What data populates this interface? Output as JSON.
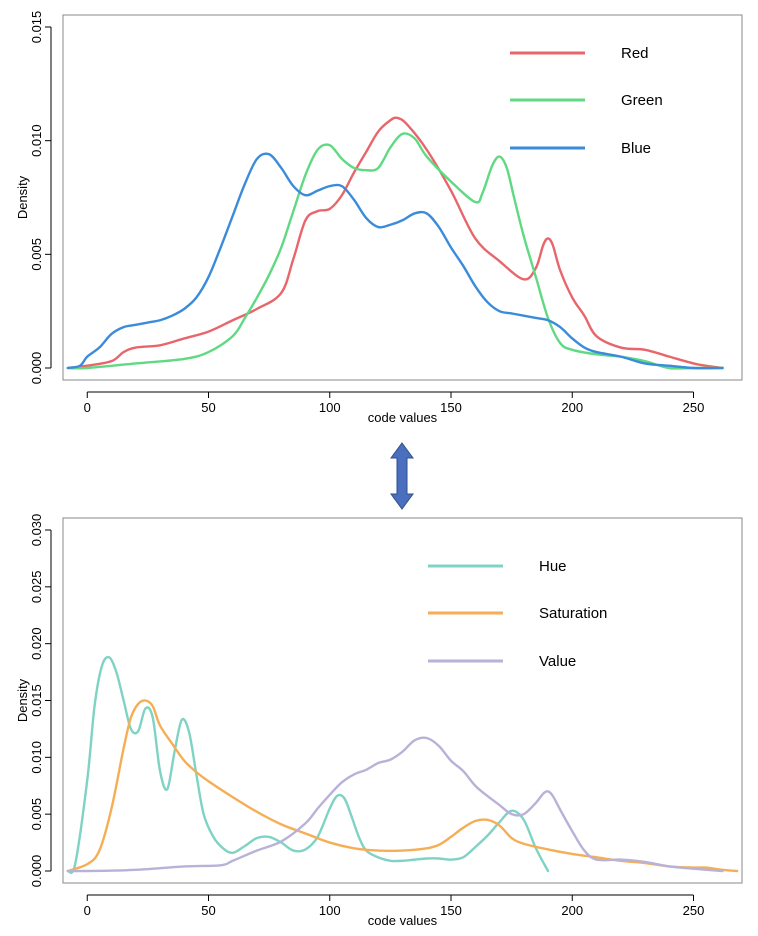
{
  "arrow_color": "#4a6fbf",
  "chart_data": [
    {
      "type": "line",
      "title": "",
      "xlabel": "code values",
      "ylabel": "Density",
      "xlim": [
        -10,
        270
      ],
      "ylim": [
        0,
        0.015
      ],
      "xticks": [
        {
          "v": 0,
          "label": "0"
        },
        {
          "v": 50,
          "label": "50"
        },
        {
          "v": 100,
          "label": "100"
        },
        {
          "v": 150,
          "label": "150"
        },
        {
          "v": 200,
          "label": "200"
        },
        {
          "v": 250,
          "label": "250"
        }
      ],
      "yticks": [
        {
          "v": 0,
          "label": "0.000"
        },
        {
          "v": 0.005,
          "label": "0.005"
        },
        {
          "v": 0.01,
          "label": "0.010"
        },
        {
          "v": 0.015,
          "label": "0.015"
        }
      ],
      "legend_position": "top-right",
      "series": [
        {
          "name": "Red",
          "color": "#e8666b",
          "x": [
            -8,
            0,
            10,
            15,
            20,
            30,
            40,
            50,
            60,
            70,
            80,
            85,
            90,
            95,
            100,
            105,
            110,
            115,
            120,
            125,
            128,
            132,
            140,
            150,
            160,
            170,
            180,
            185,
            188,
            190,
            192,
            195,
            200,
            205,
            210,
            220,
            230,
            240,
            250,
            255,
            262
          ],
          "y": [
            0,
            0.0001,
            0.0003,
            0.0007,
            0.0009,
            0.001,
            0.0013,
            0.0016,
            0.0021,
            0.0026,
            0.0033,
            0.0048,
            0.0065,
            0.0069,
            0.007,
            0.0076,
            0.0086,
            0.0095,
            0.0104,
            0.0109,
            0.011,
            0.0107,
            0.0096,
            0.0078,
            0.0057,
            0.0047,
            0.0039,
            0.0044,
            0.0054,
            0.0057,
            0.0054,
            0.0043,
            0.0031,
            0.0023,
            0.0014,
            0.0009,
            0.0008,
            0.0005,
            0.0002,
            0.0001,
            0
          ]
        },
        {
          "name": "Green",
          "color": "#5fd982",
          "x": [
            -8,
            0,
            20,
            40,
            50,
            60,
            65,
            70,
            75,
            80,
            85,
            90,
            95,
            100,
            105,
            110,
            115,
            120,
            125,
            130,
            135,
            140,
            150,
            160,
            163,
            167,
            170,
            173,
            176,
            180,
            185,
            190,
            195,
            200,
            210,
            220,
            230,
            240,
            250,
            262
          ],
          "y": [
            0,
            0,
            0.0002,
            0.0004,
            0.0007,
            0.0014,
            0.0022,
            0.0031,
            0.0041,
            0.0053,
            0.0069,
            0.0085,
            0.0096,
            0.0098,
            0.0092,
            0.0088,
            0.0087,
            0.0088,
            0.0097,
            0.0103,
            0.0101,
            0.0093,
            0.0082,
            0.0073,
            0.0077,
            0.0089,
            0.0093,
            0.0088,
            0.0075,
            0.0058,
            0.004,
            0.0022,
            0.0011,
            0.0008,
            0.0006,
            0.0005,
            0.0003,
            0,
            0,
            0
          ]
        },
        {
          "name": "Blue",
          "color": "#3b8bdb",
          "x": [
            -8,
            -3,
            0,
            5,
            10,
            15,
            20,
            25,
            30,
            35,
            40,
            45,
            50,
            55,
            60,
            65,
            70,
            75,
            80,
            85,
            90,
            95,
            100,
            105,
            110,
            115,
            120,
            125,
            130,
            135,
            140,
            145,
            150,
            155,
            160,
            165,
            170,
            175,
            180,
            185,
            190,
            195,
            200,
            205,
            210,
            220,
            230,
            240,
            250,
            262
          ],
          "y": [
            0,
            0.0001,
            0.0005,
            0.0009,
            0.0015,
            0.0018,
            0.0019,
            0.002,
            0.0021,
            0.0023,
            0.0026,
            0.0031,
            0.004,
            0.0053,
            0.0067,
            0.0081,
            0.0092,
            0.0094,
            0.0088,
            0.008,
            0.0076,
            0.0078,
            0.008,
            0.008,
            0.0074,
            0.0066,
            0.0062,
            0.0063,
            0.0065,
            0.0068,
            0.0068,
            0.0062,
            0.0053,
            0.0045,
            0.0036,
            0.0029,
            0.0025,
            0.0024,
            0.0023,
            0.0022,
            0.0021,
            0.0018,
            0.0013,
            0.0009,
            0.0007,
            0.0005,
            0.0002,
            0.0001,
            0,
            0
          ]
        }
      ]
    },
    {
      "type": "line",
      "title": "",
      "xlabel": "code values",
      "ylabel": "Density",
      "xlim": [
        -10,
        270
      ],
      "ylim": [
        0,
        0.03
      ],
      "xticks": [
        {
          "v": 0,
          "label": "0"
        },
        {
          "v": 50,
          "label": "50"
        },
        {
          "v": 100,
          "label": "100"
        },
        {
          "v": 150,
          "label": "150"
        },
        {
          "v": 200,
          "label": "200"
        },
        {
          "v": 250,
          "label": "250"
        }
      ],
      "yticks": [
        {
          "v": 0,
          "label": "0.000"
        },
        {
          "v": 0.005,
          "label": "0.005"
        },
        {
          "v": 0.01,
          "label": "0.010"
        },
        {
          "v": 0.015,
          "label": "0.015"
        },
        {
          "v": 0.02,
          "label": "0.020"
        },
        {
          "v": 0.025,
          "label": "0.025"
        },
        {
          "v": 0.03,
          "label": "0.030"
        }
      ],
      "legend_position": "top-right",
      "series": [
        {
          "name": "Hue",
          "color": "#7fd3c4",
          "x": [
            -8,
            -5,
            0,
            3,
            6,
            9,
            12,
            15,
            18,
            21,
            24,
            27,
            30,
            33,
            36,
            39,
            42,
            45,
            48,
            52,
            56,
            60,
            65,
            70,
            75,
            80,
            85,
            90,
            95,
            100,
            103,
            106,
            109,
            112,
            115,
            120,
            125,
            130,
            135,
            140,
            145,
            150,
            155,
            160,
            165,
            170,
            175,
            180,
            185,
            190
          ],
          "y": [
            0,
            0.0006,
            0.008,
            0.0145,
            0.018,
            0.0188,
            0.0175,
            0.015,
            0.0125,
            0.0123,
            0.0143,
            0.0135,
            0.0088,
            0.0072,
            0.0105,
            0.0133,
            0.0122,
            0.0085,
            0.005,
            0.003,
            0.002,
            0.0016,
            0.0022,
            0.0029,
            0.003,
            0.0025,
            0.0018,
            0.0019,
            0.003,
            0.0055,
            0.0066,
            0.0064,
            0.0048,
            0.003,
            0.0018,
            0.0012,
            0.0009,
            0.0009,
            0.001,
            0.0011,
            0.0011,
            0.001,
            0.0012,
            0.0021,
            0.0031,
            0.0043,
            0.0053,
            0.0045,
            0.002,
            0
          ]
        },
        {
          "name": "Saturation",
          "color": "#f6ae55",
          "x": [
            -8,
            0,
            5,
            10,
            15,
            18,
            21,
            24,
            27,
            30,
            35,
            40,
            45,
            50,
            60,
            70,
            80,
            90,
            100,
            110,
            120,
            130,
            140,
            145,
            150,
            155,
            160,
            165,
            170,
            175,
            180,
            190,
            200,
            210,
            220,
            230,
            240,
            250,
            255,
            262,
            268
          ],
          "y": [
            0,
            0.0006,
            0.0018,
            0.0055,
            0.0108,
            0.0135,
            0.0147,
            0.015,
            0.0145,
            0.0128,
            0.0112,
            0.0097,
            0.0087,
            0.0079,
            0.0065,
            0.0052,
            0.0041,
            0.0033,
            0.0025,
            0.002,
            0.0018,
            0.0018,
            0.002,
            0.0023,
            0.003,
            0.0038,
            0.0044,
            0.0045,
            0.004,
            0.0029,
            0.0024,
            0.0019,
            0.0015,
            0.0012,
            0.0009,
            0.0007,
            0.0004,
            0.0003,
            0.0003,
            0.0001,
            0
          ]
        },
        {
          "name": "Value",
          "color": "#b8b2d8",
          "x": [
            -8,
            0,
            20,
            40,
            55,
            60,
            70,
            80,
            90,
            95,
            100,
            105,
            110,
            115,
            120,
            125,
            130,
            135,
            140,
            145,
            150,
            155,
            160,
            165,
            170,
            175,
            180,
            185,
            188,
            190,
            192,
            195,
            200,
            205,
            210,
            220,
            230,
            240,
            250,
            262
          ],
          "y": [
            0,
            0,
            0.0001,
            0.0004,
            0.0005,
            0.0009,
            0.0018,
            0.0026,
            0.0042,
            0.0055,
            0.0067,
            0.0078,
            0.0085,
            0.0089,
            0.0095,
            0.0098,
            0.0105,
            0.0115,
            0.0117,
            0.011,
            0.0097,
            0.0088,
            0.0075,
            0.0066,
            0.0058,
            0.005,
            0.005,
            0.006,
            0.0068,
            0.007,
            0.0066,
            0.0054,
            0.0035,
            0.0018,
            0.001,
            0.001,
            0.0008,
            0.0004,
            0.0002,
            0
          ]
        }
      ]
    }
  ]
}
